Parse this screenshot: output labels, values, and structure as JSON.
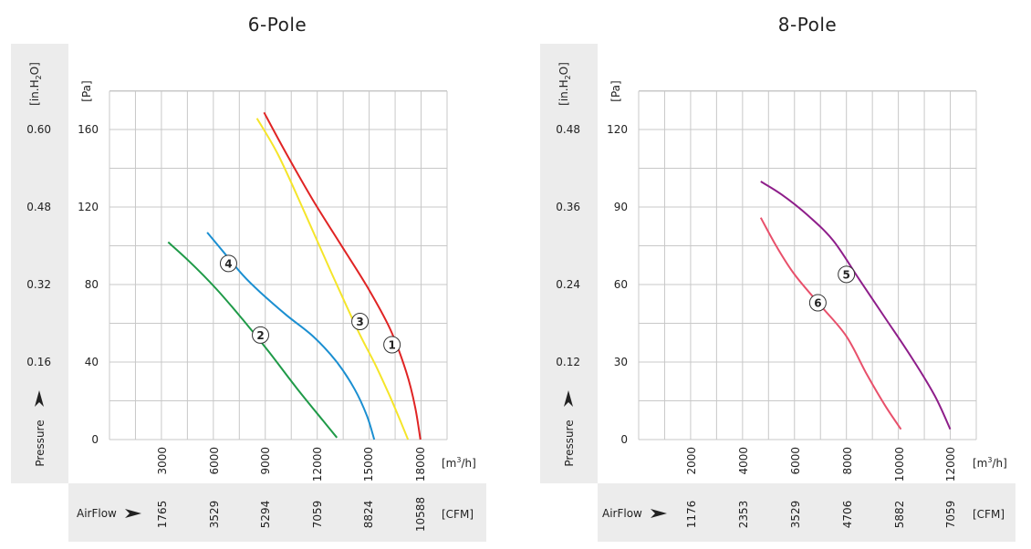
{
  "chart_data": [
    {
      "type": "line",
      "title": "6-Pole",
      "pa_unit": "[Pa]",
      "inh2o_unit_main": "[in.H",
      "inh2o_unit_sub": "2",
      "inh2o_unit_end": "O]",
      "m3h_unit_main": "[m",
      "m3h_unit_sup": "3",
      "m3h_unit_end": "/h]",
      "cfm_unit": "[CFM]",
      "pressure_label": "Pressure",
      "airflow_label": "AirFlow",
      "xlim": [
        0,
        19000
      ],
      "ylim": [
        0,
        180
      ],
      "pa_ticks": [
        "160",
        "120",
        "80",
        "40",
        "0"
      ],
      "inh2o_ticks": [
        "0.60",
        "0.48",
        "0.32",
        "0.16"
      ],
      "m3h_ticks": [
        "3000",
        "6000",
        "9000",
        "12000",
        "15000",
        "18000"
      ],
      "cfm_ticks": [
        "1765",
        "3529",
        "5294",
        "7059",
        "8824",
        "10588"
      ],
      "series": [
        {
          "name": "1",
          "color": "#e02424",
          "x": [
            8700,
            10000,
            11500,
            13000,
            14500,
            15800,
            16700,
            17200,
            17500
          ],
          "y": [
            169,
            147,
            123,
            101,
            79,
            57,
            35,
            17,
            0
          ]
        },
        {
          "name": "3",
          "color": "#f5e52a",
          "x": [
            8300,
            9500,
            11000,
            12500,
            14000,
            15000,
            15800,
            16400,
            16800
          ],
          "y": [
            166,
            147,
            117,
            86,
            56,
            38,
            22,
            9,
            0
          ]
        },
        {
          "name": "4",
          "color": "#1b8fd1",
          "x": [
            5500,
            6500,
            7500,
            8500,
            10000,
            11500,
            12800,
            13800,
            14500,
            14900
          ],
          "y": [
            107,
            96,
            85,
            76,
            64,
            53,
            40,
            26,
            12,
            0
          ]
        },
        {
          "name": "2",
          "color": "#1f9a48",
          "x": [
            3300,
            4500,
            6000,
            7500,
            9000,
            10500,
            12000,
            12800
          ],
          "y": [
            102,
            92,
            78,
            62,
            45,
            27,
            10,
            1
          ]
        }
      ],
      "markers": [
        {
          "label": "1",
          "x": 15900,
          "y": 49
        },
        {
          "label": "3",
          "x": 14100,
          "y": 61
        },
        {
          "label": "4",
          "x": 6700,
          "y": 91
        },
        {
          "label": "2",
          "x": 8500,
          "y": 54
        }
      ]
    },
    {
      "type": "line",
      "title": "8-Pole",
      "pa_unit": "[Pa]",
      "inh2o_unit_main": "[in.H",
      "inh2o_unit_sub": "2",
      "inh2o_unit_end": "O]",
      "m3h_unit_main": "[m",
      "m3h_unit_sup": "3",
      "m3h_unit_end": "/h]",
      "cfm_unit": "[CFM]",
      "pressure_label": "Pressure",
      "airflow_label": "AirFlow",
      "xlim": [
        0,
        13000
      ],
      "ylim": [
        0,
        135
      ],
      "pa_ticks": [
        "120",
        "90",
        "60",
        "30",
        "0"
      ],
      "inh2o_ticks": [
        "0.48",
        "0.36",
        "0.24",
        "0.12"
      ],
      "m3h_ticks": [
        "2000",
        "4000",
        "6000",
        "8000",
        "10000",
        "12000"
      ],
      "cfm_ticks": [
        "1176",
        "2353",
        "3529",
        "4706",
        "5882",
        "7059"
      ],
      "series": [
        {
          "name": "5",
          "color": "#8e1e8a",
          "x": [
            4700,
            5500,
            6500,
            7500,
            8500,
            9500,
            10500,
            11400,
            12000
          ],
          "y": [
            100,
            95,
            87,
            77,
            62,
            47,
            32,
            17,
            4
          ]
        },
        {
          "name": "6",
          "color": "#e8506b",
          "x": [
            4700,
            5300,
            6000,
            7000,
            8000,
            8800,
            9500,
            10100
          ],
          "y": [
            86,
            75,
            64,
            52,
            40,
            25,
            13,
            4
          ]
        }
      ],
      "markers": [
        {
          "label": "5",
          "x": 8000,
          "y": 64
        },
        {
          "label": "6",
          "x": 6900,
          "y": 53
        }
      ]
    }
  ]
}
